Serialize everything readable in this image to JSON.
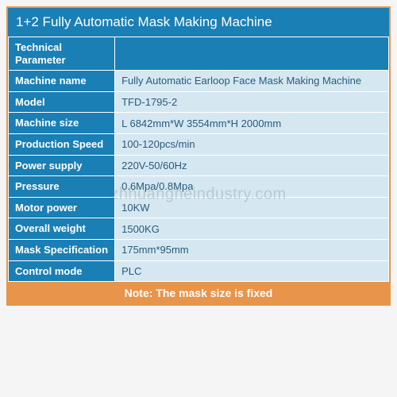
{
  "title": "1+2 Fully Automatic Mask Making Machine",
  "header_label": "Technical Parameter",
  "rows": [
    {
      "label": "Machine name",
      "value": "Fully Automatic Earloop Face  Mask  Making  Machine"
    },
    {
      "label": "Model",
      "value": "TFD-1795-2"
    },
    {
      "label": "Machine size",
      "value": " L 6842mm*W 3554mm*H 2000mm"
    },
    {
      "label": "Production Speed",
      "value": "100-120pcs/min"
    },
    {
      "label": "Power supply",
      "value": "220V-50/60Hz"
    },
    {
      "label": "Pressure",
      "value": "0.6Mpa/0.8Mpa"
    },
    {
      "label": "Motor power",
      "value": "10KW"
    },
    {
      "label": "Overall weight",
      "value": "1500KG"
    },
    {
      "label": "Mask Specification",
      "value": "175mm*95mm"
    },
    {
      "label": "Control mode",
      "value": "PLC"
    }
  ],
  "footer_note": "Note: The mask size is fixed",
  "watermark": "zhhuangheindustry.com",
  "colors": {
    "border": "#e8944a",
    "header_bg": "#1a7fb5",
    "value_bg": "#d5e8f2",
    "value_text": "#2a5a7a",
    "footer_bg": "#e8944a"
  }
}
